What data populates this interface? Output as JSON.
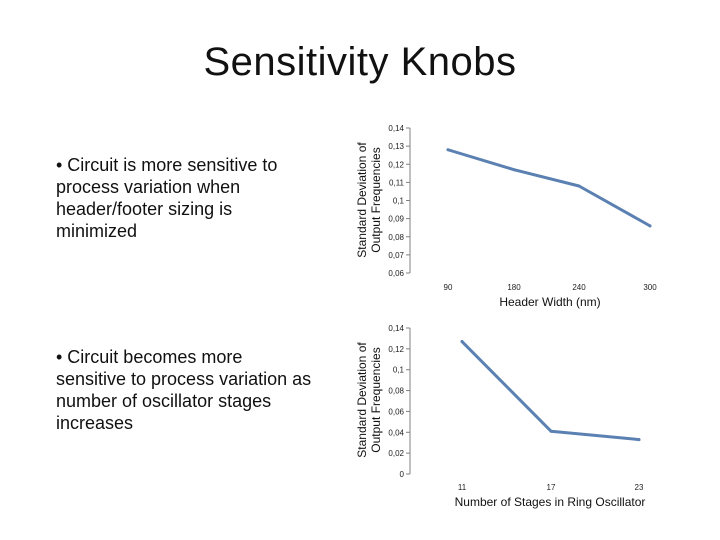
{
  "slide": {
    "title": "Sensitivity Knobs",
    "bullets": [
      "• Circuit is more sensitive to process variation when header/footer sizing is minimized",
      "• Circuit becomes more sensitive to process variation as number of oscillator stages increases"
    ]
  },
  "colors": {
    "series": "#5b80b2",
    "axis": "#808080",
    "text": "#111111"
  },
  "chart_data": [
    {
      "type": "line",
      "x": [
        90,
        180,
        240,
        300
      ],
      "y": [
        0.128,
        0.117,
        0.108,
        0.086
      ],
      "xticks": [
        "90",
        "180",
        "240",
        "300"
      ],
      "yticks": [
        "0,06",
        "0,07",
        "0,08",
        "0,09",
        "0,1",
        "0,11",
        "0,12",
        "0,13",
        "0,14"
      ],
      "ylim": [
        0.06,
        0.14
      ],
      "xlabel": "Header Width (nm)",
      "ylabel": [
        "Standard Deviation of",
        "Output Frequencies"
      ],
      "grid": false
    },
    {
      "type": "line",
      "x": [
        11,
        17,
        23
      ],
      "y": [
        0.127,
        0.041,
        0.033
      ],
      "xticks": [
        "11",
        "17",
        "23"
      ],
      "yticks": [
        "0",
        "0,02",
        "0,04",
        "0,06",
        "0,08",
        "0,1",
        "0,12",
        "0,14"
      ],
      "ylim": [
        0,
        0.14
      ],
      "xlabel": "Number of Stages in Ring Oscillator",
      "ylabel": [
        "Standard Deviation of",
        "Output Frequencies"
      ],
      "grid": false
    }
  ]
}
